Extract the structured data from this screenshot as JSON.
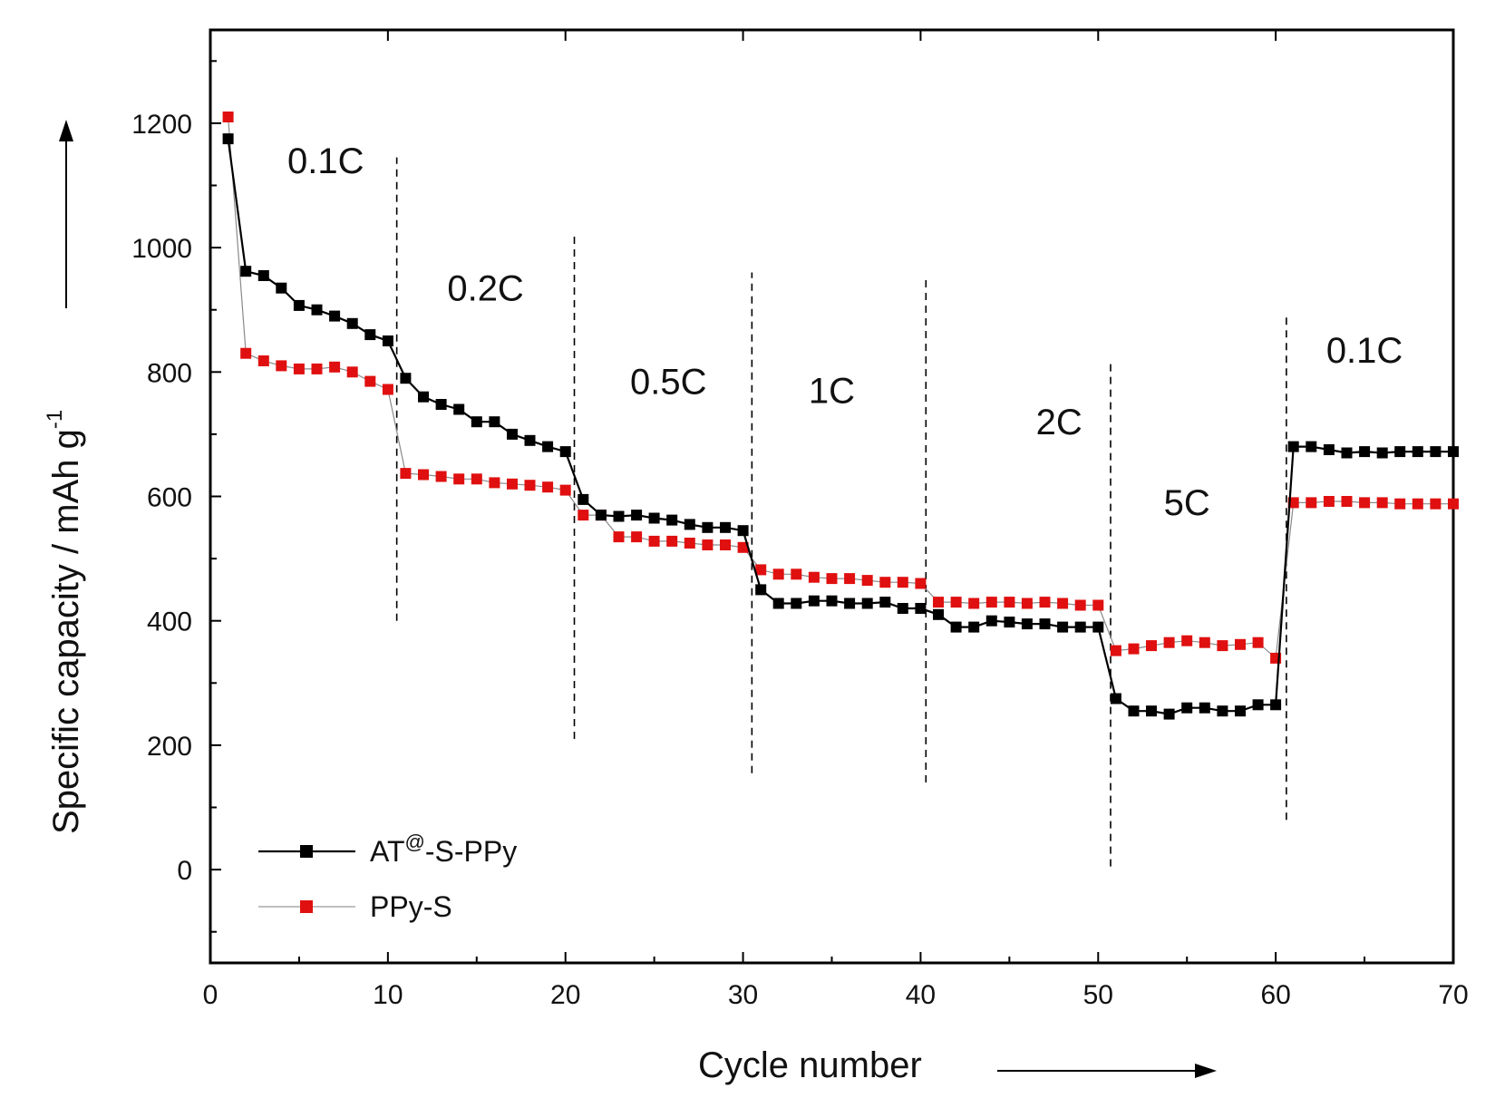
{
  "chart_data": {
    "type": "line",
    "xlabel": "Cycle number",
    "ylabel": "Specific capacity / mAh g",
    "ylabel_superscript": "-1",
    "xlim": [
      0,
      70
    ],
    "ylim": [
      -150,
      1350
    ],
    "xticks": [
      0,
      10,
      20,
      30,
      40,
      50,
      60,
      70
    ],
    "yticks": [
      0,
      200,
      400,
      600,
      800,
      1000,
      1200
    ],
    "grid": false,
    "legend_position": "bottom-left",
    "rate_regions": [
      {
        "label": "0.1C",
        "x": 6.5,
        "y": 1120
      },
      {
        "label": "0.2C",
        "x": 15.5,
        "y": 915
      },
      {
        "label": "0.5C",
        "x": 25.8,
        "y": 765
      },
      {
        "label": "1C",
        "x": 35,
        "y": 750
      },
      {
        "label": "2C",
        "x": 47.8,
        "y": 700
      },
      {
        "label": "5C",
        "x": 55,
        "y": 570
      },
      {
        "label": "0.1C",
        "x": 65,
        "y": 815
      }
    ],
    "dividers": [
      {
        "x": 10.5,
        "y_from": 400,
        "y_to": 1145
      },
      {
        "x": 20.5,
        "y_from": 210,
        "y_to": 1020
      },
      {
        "x": 30.5,
        "y_from": 155,
        "y_to": 960
      },
      {
        "x": 40.3,
        "y_from": 140,
        "y_to": 950
      },
      {
        "x": 50.7,
        "y_from": 5,
        "y_to": 820
      },
      {
        "x": 60.6,
        "y_from": 80,
        "y_to": 890
      }
    ],
    "series": [
      {
        "name": "AT",
        "name_superscript": "@",
        "name_suffix": "-S-PPy",
        "color": "#000000",
        "line_width": 2.2,
        "x": [
          1,
          2,
          3,
          4,
          5,
          6,
          7,
          8,
          9,
          10,
          11,
          12,
          13,
          14,
          15,
          16,
          17,
          18,
          19,
          20,
          21,
          22,
          23,
          24,
          25,
          26,
          27,
          28,
          29,
          30,
          31,
          32,
          33,
          34,
          35,
          36,
          37,
          38,
          39,
          40,
          41,
          42,
          43,
          44,
          45,
          46,
          47,
          48,
          49,
          50,
          51,
          52,
          53,
          54,
          55,
          56,
          57,
          58,
          59,
          60,
          61,
          62,
          63,
          64,
          65,
          66,
          67,
          68,
          69,
          70
        ],
        "values": [
          1175,
          962,
          955,
          935,
          907,
          900,
          890,
          878,
          860,
          850,
          790,
          760,
          748,
          740,
          720,
          720,
          700,
          690,
          680,
          672,
          595,
          570,
          568,
          570,
          565,
          562,
          555,
          550,
          550,
          545,
          450,
          428,
          428,
          432,
          432,
          428,
          428,
          430,
          420,
          420,
          410,
          390,
          390,
          400,
          398,
          395,
          395,
          390,
          390,
          390,
          275,
          255,
          255,
          250,
          260,
          260,
          255,
          255,
          265,
          265,
          680,
          680,
          675,
          670,
          672,
          670,
          672,
          672,
          672,
          672
        ]
      },
      {
        "name": "PPy-S",
        "color": "#e01010",
        "line_width": 1.2,
        "x": [
          1,
          2,
          3,
          4,
          5,
          6,
          7,
          8,
          9,
          10,
          11,
          12,
          13,
          14,
          15,
          16,
          17,
          18,
          19,
          20,
          21,
          22,
          23,
          24,
          25,
          26,
          27,
          28,
          29,
          30,
          31,
          32,
          33,
          34,
          35,
          36,
          37,
          38,
          39,
          40,
          41,
          42,
          43,
          44,
          45,
          46,
          47,
          48,
          49,
          50,
          51,
          52,
          53,
          54,
          55,
          56,
          57,
          58,
          59,
          60,
          61,
          62,
          63,
          64,
          65,
          66,
          67,
          68,
          69,
          70
        ],
        "values": [
          1210,
          830,
          818,
          810,
          805,
          805,
          808,
          800,
          785,
          772,
          637,
          635,
          632,
          628,
          628,
          622,
          620,
          618,
          615,
          610,
          570,
          570,
          535,
          535,
          528,
          528,
          525,
          522,
          522,
          518,
          482,
          475,
          475,
          470,
          468,
          468,
          465,
          462,
          462,
          460,
          430,
          430,
          428,
          430,
          430,
          428,
          430,
          428,
          425,
          425,
          352,
          355,
          360,
          365,
          368,
          365,
          360,
          362,
          365,
          340,
          590,
          590,
          592,
          592,
          590,
          590,
          588,
          588,
          588,
          588
        ]
      }
    ]
  }
}
